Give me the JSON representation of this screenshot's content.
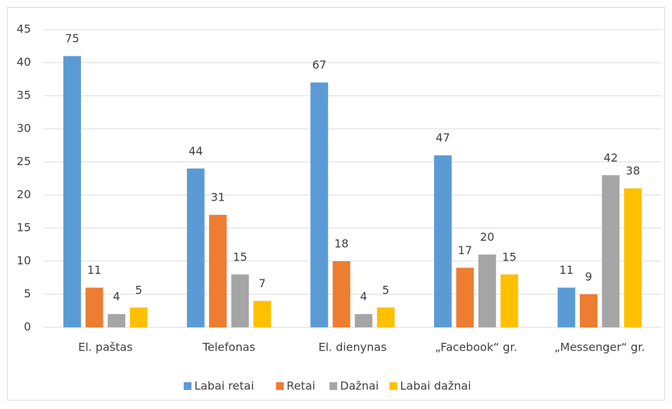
{
  "chart_data": {
    "type": "bar",
    "categories": [
      "El. paštas",
      "Telefonas",
      "El. dienynas",
      "„Facebook“ gr.",
      "„Messenger“ gr."
    ],
    "series": [
      {
        "name": "Labai retai",
        "color": "#5b9bd5",
        "values": [
          41,
          24,
          37,
          26,
          6
        ],
        "labels": [
          75,
          44,
          67,
          47,
          11
        ]
      },
      {
        "name": "Retai",
        "color": "#ed7d31",
        "values": [
          6,
          17,
          10,
          9,
          5
        ],
        "labels": [
          11,
          31,
          18,
          17,
          9
        ]
      },
      {
        "name": "Dažnai",
        "color": "#a5a5a5",
        "values": [
          2,
          8,
          2,
          11,
          23
        ],
        "labels": [
          4,
          15,
          4,
          20,
          42
        ]
      },
      {
        "name": "Labai dažnai",
        "color": "#ffc000",
        "values": [
          3,
          4,
          3,
          8,
          21
        ],
        "labels": [
          5,
          7,
          5,
          15,
          38
        ]
      }
    ],
    "ylim": [
      0,
      45
    ],
    "yticks": [
      0,
      5,
      10,
      15,
      20,
      25,
      30,
      35,
      40,
      45
    ],
    "grid": true,
    "legend": "bottom"
  }
}
